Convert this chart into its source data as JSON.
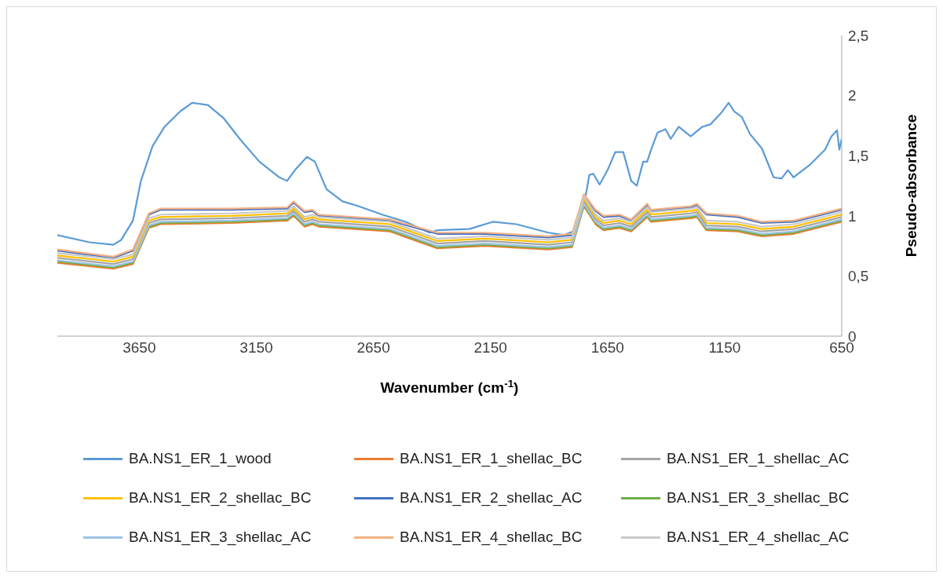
{
  "chart_data": {
    "type": "line",
    "xlabel": "Wavenumber (cm$^{-1}$)",
    "ylabel": "Pseudo-absorbance",
    "xlim": [
      4000,
      650
    ],
    "xticks": [
      3650,
      3150,
      2650,
      2150,
      1650,
      1150,
      650
    ],
    "ylim": [
      0,
      2.5
    ],
    "yticks": [
      0,
      {
        "value": 0.5,
        "label": "0,5"
      },
      1,
      {
        "value": 1.5,
        "label": "1,5"
      },
      2,
      {
        "value": 2.5,
        "label": "2,5"
      }
    ],
    "legend": "bottom",
    "x": [
      4000,
      3761,
      3677,
      3609,
      3559,
      3255,
      3018,
      2991,
      2944,
      2910,
      2883,
      2579,
      2377,
      2174,
      1903,
      1802,
      1751,
      1701,
      1667,
      1599,
      1549,
      1481,
      1464,
      1295,
      1268,
      1228,
      1093,
      991,
      856,
      650
    ],
    "series": [
      {
        "name": "BA.NS1_ER_1_wood",
        "color": "#5b9bd5",
        "x": [
          4000,
          3863,
          3761,
          3727,
          3677,
          3643,
          3593,
          3542,
          3474,
          3424,
          3356,
          3289,
          3221,
          3137,
          3052,
          3019,
          2985,
          2934,
          2900,
          2850,
          2782,
          2714,
          2613,
          2512,
          2410,
          2377,
          2241,
          2140,
          2039,
          1903,
          1836,
          1785,
          1751,
          1728,
          1711,
          1684,
          1650,
          1617,
          1583,
          1549,
          1525,
          1498,
          1481,
          1464,
          1437,
          1403,
          1380,
          1346,
          1295,
          1245,
          1211,
          1167,
          1133,
          1110,
          1076,
          1042,
          991,
          941,
          907,
          880,
          856,
          788,
          721,
          694,
          670,
          660,
          650
        ],
        "values": [
          0.84,
          0.78,
          0.76,
          0.8,
          0.96,
          1.29,
          1.58,
          1.74,
          1.87,
          1.94,
          1.92,
          1.81,
          1.64,
          1.45,
          1.32,
          1.29,
          1.38,
          1.49,
          1.45,
          1.22,
          1.12,
          1.08,
          1.01,
          0.95,
          0.86,
          0.88,
          0.89,
          0.95,
          0.93,
          0.86,
          0.84,
          0.88,
          1.08,
          1.34,
          1.35,
          1.26,
          1.38,
          1.53,
          1.53,
          1.29,
          1.25,
          1.45,
          1.45,
          1.55,
          1.69,
          1.72,
          1.64,
          1.74,
          1.66,
          1.74,
          1.76,
          1.85,
          1.94,
          1.87,
          1.82,
          1.68,
          1.56,
          1.32,
          1.31,
          1.38,
          1.32,
          1.42,
          1.55,
          1.66,
          1.71,
          1.55,
          1.64
        ]
      },
      {
        "name": "BA.NS1_ER_1_shellac_BC",
        "color": "#ed7d31",
        "values": [
          0.61,
          0.56,
          0.6,
          0.9,
          0.93,
          0.94,
          0.96,
          1.0,
          0.91,
          0.93,
          0.91,
          0.87,
          0.73,
          0.75,
          0.72,
          0.74,
          1.08,
          0.93,
          0.88,
          0.9,
          0.87,
          0.99,
          0.95,
          0.98,
          0.99,
          0.88,
          0.87,
          0.83,
          0.85,
          0.95
        ]
      },
      {
        "name": "BA.NS1_ER_1_shellac_AC",
        "color": "#a5a5a5",
        "values": [
          0.65,
          0.6,
          0.64,
          0.94,
          0.97,
          0.98,
          1.0,
          1.04,
          0.95,
          0.97,
          0.95,
          0.91,
          0.77,
          0.79,
          0.76,
          0.78,
          1.12,
          0.97,
          0.92,
          0.94,
          0.91,
          1.03,
          0.99,
          1.02,
          1.03,
          0.92,
          0.91,
          0.87,
          0.89,
          0.99
        ]
      },
      {
        "name": "BA.NS1_ER_2_shellac_BC",
        "color": "#ffc000",
        "values": [
          0.67,
          0.62,
          0.66,
          0.96,
          0.99,
          1.0,
          1.02,
          1.06,
          0.97,
          0.99,
          0.97,
          0.93,
          0.79,
          0.81,
          0.78,
          0.8,
          1.14,
          0.99,
          0.94,
          0.96,
          0.93,
          1.05,
          1.01,
          1.04,
          1.05,
          0.94,
          0.93,
          0.89,
          0.91,
          1.01
        ]
      },
      {
        "name": "BA.NS1_ER_2_shellac_AC",
        "color": "#4472c4",
        "values": [
          0.71,
          0.65,
          0.71,
          1.01,
          1.05,
          1.05,
          1.06,
          1.11,
          1.03,
          1.04,
          1.0,
          0.96,
          0.85,
          0.85,
          0.82,
          0.84,
          1.17,
          1.04,
          0.99,
          1.0,
          0.96,
          1.09,
          1.04,
          1.07,
          1.09,
          1.01,
          0.99,
          0.94,
          0.95,
          1.05
        ]
      },
      {
        "name": "BA.NS1_ER_3_shellac_BC",
        "color": "#70ad47",
        "values": [
          0.62,
          0.57,
          0.61,
          0.91,
          0.94,
          0.95,
          0.97,
          1.01,
          0.92,
          0.94,
          0.92,
          0.88,
          0.74,
          0.76,
          0.73,
          0.75,
          1.09,
          0.94,
          0.89,
          0.91,
          0.88,
          1.0,
          0.96,
          0.99,
          1.0,
          0.89,
          0.88,
          0.84,
          0.86,
          0.96
        ]
      },
      {
        "name": "BA.NS1_ER_3_shellac_AC",
        "color": "#9dc3e6",
        "values": [
          0.63,
          0.58,
          0.62,
          0.92,
          0.95,
          0.96,
          0.98,
          1.02,
          0.93,
          0.95,
          0.93,
          0.89,
          0.75,
          0.77,
          0.74,
          0.76,
          1.1,
          0.95,
          0.9,
          0.92,
          0.89,
          1.01,
          0.97,
          1.0,
          1.01,
          0.9,
          0.89,
          0.85,
          0.87,
          0.97
        ]
      },
      {
        "name": "BA.NS1_ER_4_shellac_BC",
        "color": "#f4b183",
        "values": [
          0.72,
          0.66,
          0.72,
          1.02,
          1.06,
          1.06,
          1.07,
          1.12,
          1.04,
          1.05,
          1.01,
          0.97,
          0.86,
          0.86,
          0.83,
          0.85,
          1.18,
          1.05,
          1.0,
          1.01,
          0.97,
          1.1,
          1.05,
          1.08,
          1.1,
          1.02,
          1.0,
          0.95,
          0.96,
          1.06
        ]
      },
      {
        "name": "BA.NS1_ER_4_shellac_AC",
        "color": "#c9c9c9",
        "values": [
          0.69,
          0.64,
          0.68,
          0.98,
          1.01,
          1.02,
          1.04,
          1.08,
          0.99,
          1.01,
          0.99,
          0.95,
          0.81,
          0.83,
          0.8,
          0.82,
          1.16,
          1.01,
          0.96,
          0.98,
          0.95,
          1.07,
          1.03,
          1.06,
          1.07,
          0.96,
          0.95,
          0.91,
          0.93,
          1.03
        ]
      }
    ]
  }
}
